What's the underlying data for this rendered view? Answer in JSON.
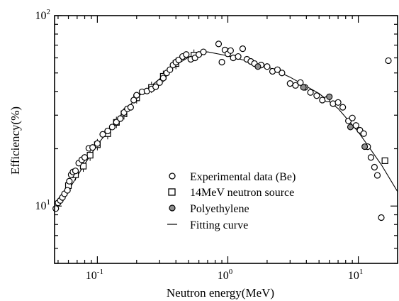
{
  "chart_data": {
    "type": "scatter",
    "xscale": "log",
    "yscale": "log",
    "xlim": [
      0.047,
      20
    ],
    "ylim": [
      5,
      100
    ],
    "xlabel": "Neutron energy(MeV)",
    "ylabel": "Efficiency(%)",
    "x_tick_labels": [
      {
        "base": "10",
        "exp": "-1",
        "value": 0.1
      },
      {
        "base": "10",
        "exp": "0",
        "value": 1
      },
      {
        "base": "10",
        "exp": "1",
        "value": 10
      }
    ],
    "y_tick_labels": [
      {
        "base": "10",
        "exp": "1",
        "value": 10
      },
      {
        "base": "10",
        "exp": "2",
        "value": 100
      }
    ],
    "legend_position": "lower-center",
    "series": [
      {
        "name": "Experimental data (Be)",
        "marker": "open-circle",
        "points": [
          [
            0.048,
            9.7
          ],
          [
            0.05,
            10.4
          ],
          [
            0.052,
            10.7
          ],
          [
            0.054,
            11.1
          ],
          [
            0.056,
            11.6
          ],
          [
            0.059,
            12.1
          ],
          [
            0.061,
            13.5
          ],
          [
            0.063,
            14.6
          ],
          [
            0.065,
            15.1
          ],
          [
            0.068,
            15.3
          ],
          [
            0.072,
            16.8
          ],
          [
            0.076,
            17.5
          ],
          [
            0.08,
            18.0
          ],
          [
            0.086,
            20.1
          ],
          [
            0.092,
            20.3
          ],
          [
            0.1,
            21.3
          ],
          [
            0.11,
            23.8
          ],
          [
            0.12,
            24.8
          ],
          [
            0.13,
            26.0
          ],
          [
            0.14,
            27.6
          ],
          [
            0.15,
            28.8
          ],
          [
            0.16,
            31.0
          ],
          [
            0.17,
            32.4
          ],
          [
            0.18,
            33.0
          ],
          [
            0.19,
            36.0
          ],
          [
            0.2,
            38.2
          ],
          [
            0.22,
            39.8
          ],
          [
            0.24,
            40.2
          ],
          [
            0.26,
            41.2
          ],
          [
            0.28,
            42.3
          ],
          [
            0.3,
            44.5
          ],
          [
            0.32,
            47.0
          ],
          [
            0.34,
            50.0
          ],
          [
            0.36,
            52.0
          ],
          [
            0.38,
            55.0
          ],
          [
            0.4,
            57.0
          ],
          [
            0.42,
            58.5
          ],
          [
            0.45,
            61.0
          ],
          [
            0.48,
            62.5
          ],
          [
            0.52,
            59.0
          ],
          [
            0.56,
            60.0
          ],
          [
            0.6,
            62.5
          ],
          [
            0.65,
            64.5
          ],
          [
            0.85,
            71.0
          ],
          [
            0.9,
            57.0
          ],
          [
            0.95,
            66.0
          ],
          [
            1.0,
            63.0
          ],
          [
            1.05,
            65.5
          ],
          [
            1.1,
            60.0
          ],
          [
            1.2,
            61.0
          ],
          [
            1.3,
            67.0
          ],
          [
            1.4,
            59.0
          ],
          [
            1.5,
            57.5
          ],
          [
            1.6,
            56.0
          ],
          [
            1.8,
            55.0
          ],
          [
            2.0,
            54.0
          ],
          [
            2.2,
            51.0
          ],
          [
            2.4,
            52.0
          ],
          [
            2.6,
            50.0
          ],
          [
            3.0,
            44.0
          ],
          [
            3.3,
            43.0
          ],
          [
            3.6,
            44.5
          ],
          [
            3.9,
            42.0
          ],
          [
            4.3,
            39.5
          ],
          [
            4.8,
            38.0
          ],
          [
            5.3,
            36.0
          ],
          [
            5.8,
            36.5
          ],
          [
            6.4,
            34.5
          ],
          [
            7.0,
            35.0
          ],
          [
            7.6,
            33.0
          ],
          [
            8.4,
            28.0
          ],
          [
            9.0,
            29.0
          ],
          [
            9.6,
            26.5
          ],
          [
            10.3,
            25.0
          ],
          [
            11.0,
            24.0
          ],
          [
            11.8,
            20.5
          ],
          [
            12.5,
            18.0
          ],
          [
            13.3,
            16.0
          ],
          [
            14.0,
            14.5
          ],
          [
            15.0,
            8.7
          ],
          [
            17.0,
            58.0
          ]
        ]
      },
      {
        "name": "14MeV neutron source",
        "marker": "open-square",
        "points": [
          [
            0.06,
            12.8
          ],
          [
            0.068,
            14.6
          ],
          [
            0.078,
            16.2
          ],
          [
            0.088,
            18.5
          ],
          [
            0.1,
            21.0
          ],
          [
            0.12,
            24.0
          ],
          [
            0.14,
            27.5
          ],
          [
            0.16,
            30.5
          ],
          [
            0.2,
            37.0
          ],
          [
            0.26,
            42.0
          ],
          [
            0.32,
            48.0
          ],
          [
            0.4,
            56.0
          ],
          [
            0.55,
            62.0
          ],
          [
            16.0,
            17.3
          ]
        ]
      },
      {
        "name": "Polyethylene",
        "marker": "filled-circle",
        "points": [
          [
            1.7,
            54.0
          ],
          [
            3.8,
            42.0
          ],
          [
            6.0,
            37.5
          ],
          [
            8.7,
            26.0
          ],
          [
            11.2,
            20.5
          ]
        ]
      },
      {
        "name": "Fitting curve",
        "marker": "line",
        "points": [
          [
            0.047,
            9.6
          ],
          [
            0.06,
            12.1
          ],
          [
            0.08,
            16.6
          ],
          [
            0.1,
            21.0
          ],
          [
            0.15,
            29.8
          ],
          [
            0.2,
            37.0
          ],
          [
            0.3,
            46.5
          ],
          [
            0.4,
            55.0
          ],
          [
            0.5,
            60.5
          ],
          [
            0.6,
            63.5
          ],
          [
            0.7,
            64.5
          ],
          [
            1.0,
            61.5
          ],
          [
            1.5,
            57.0
          ],
          [
            2.0,
            54.0
          ],
          [
            3.0,
            47.5
          ],
          [
            5.0,
            39.0
          ],
          [
            7.0,
            32.5
          ],
          [
            10.0,
            24.5
          ],
          [
            15.0,
            16.5
          ],
          [
            20.0,
            11.9
          ]
        ]
      }
    ]
  }
}
